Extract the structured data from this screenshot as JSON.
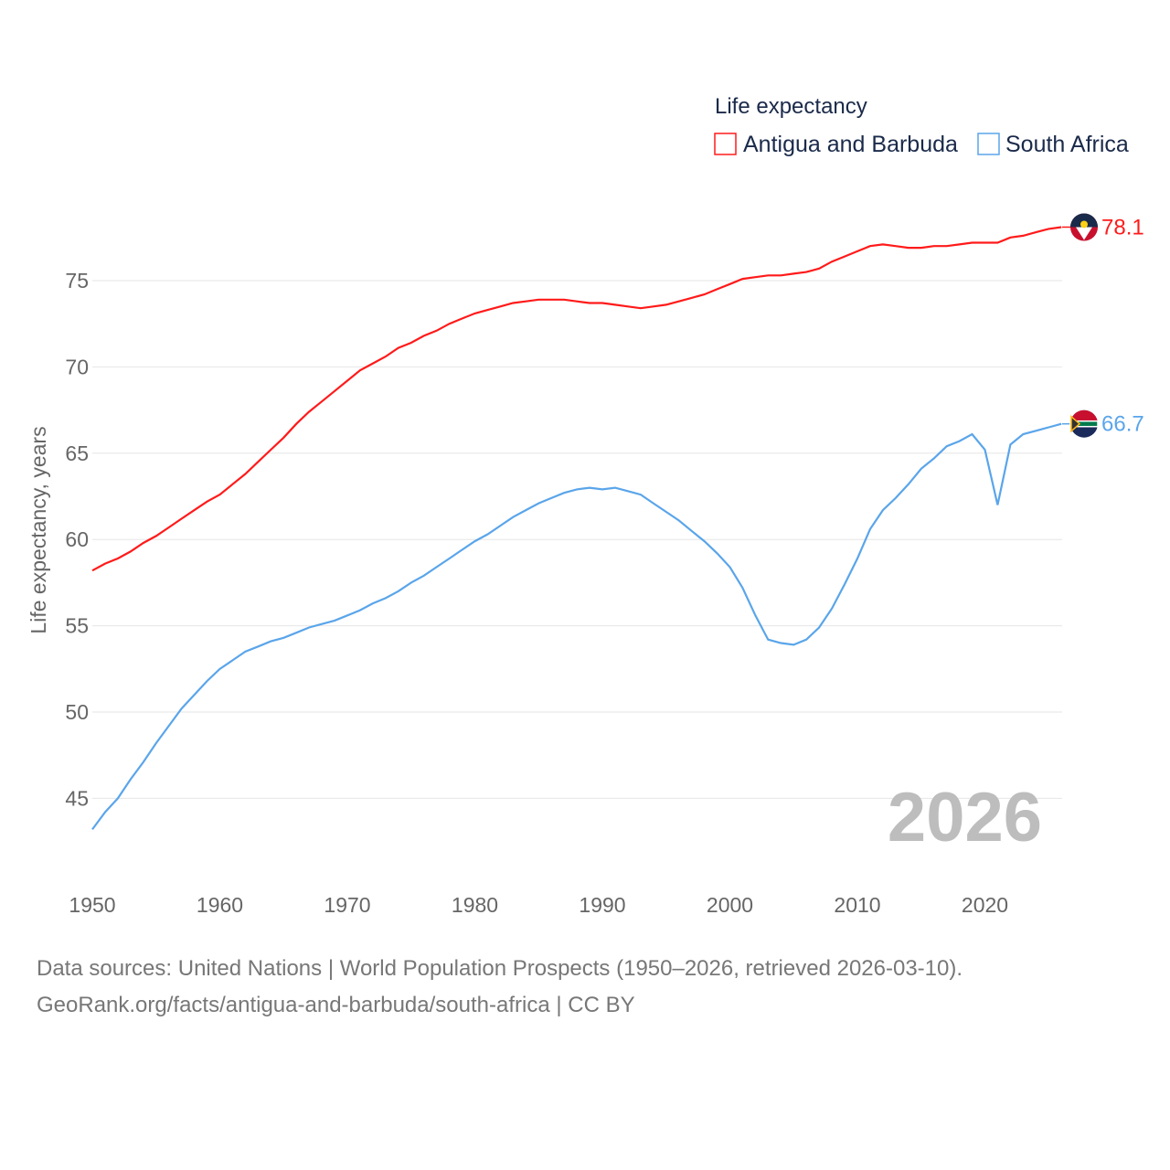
{
  "chart_data": {
    "type": "line",
    "legend_title": "Life expectancy",
    "ylabel": "Life expectancy, years",
    "xlabel": "",
    "ylim": [
      42.5,
      79
    ],
    "xlim": [
      1950,
      2026
    ],
    "grid": true,
    "legend_placement": "top-right",
    "y_ticks": [
      45,
      50,
      55,
      60,
      65,
      70,
      75
    ],
    "x_ticks": [
      1950,
      1960,
      1970,
      1980,
      1990,
      2000,
      2010,
      2020
    ],
    "year_label": "2026",
    "x_start": 1950,
    "series": [
      {
        "name": "Antigua and Barbuda",
        "color": "#ff1a1a",
        "end_label": "78.1",
        "values": [
          58.2,
          58.6,
          58.9,
          59.3,
          59.8,
          60.2,
          60.7,
          61.2,
          61.7,
          62.2,
          62.6,
          63.2,
          63.8,
          64.5,
          65.2,
          65.9,
          66.7,
          67.4,
          68.0,
          68.6,
          69.2,
          69.8,
          70.2,
          70.6,
          71.1,
          71.4,
          71.8,
          72.1,
          72.5,
          72.8,
          73.1,
          73.3,
          73.5,
          73.7,
          73.8,
          73.9,
          73.9,
          73.9,
          73.8,
          73.7,
          73.7,
          73.6,
          73.5,
          73.4,
          73.5,
          73.6,
          73.8,
          74.0,
          74.2,
          74.5,
          74.8,
          75.1,
          75.2,
          75.3,
          75.3,
          75.4,
          75.5,
          75.7,
          76.1,
          76.4,
          76.7,
          77.0,
          77.1,
          77.0,
          76.9,
          76.9,
          77.0,
          77.0,
          77.1,
          77.2,
          77.2,
          77.2,
          77.5,
          77.6,
          77.8,
          78.0,
          78.1
        ]
      },
      {
        "name": "South Africa",
        "color": "#5aa5ea",
        "end_label": "66.7",
        "values": [
          43.2,
          44.2,
          45.0,
          46.1,
          47.1,
          48.2,
          49.2,
          50.2,
          51.0,
          51.8,
          52.5,
          53.0,
          53.5,
          53.8,
          54.1,
          54.3,
          54.6,
          54.9,
          55.1,
          55.3,
          55.6,
          55.9,
          56.3,
          56.6,
          57.0,
          57.5,
          57.9,
          58.4,
          58.9,
          59.4,
          59.9,
          60.3,
          60.8,
          61.3,
          61.7,
          62.1,
          62.4,
          62.7,
          62.9,
          63.0,
          62.9,
          63.0,
          62.8,
          62.6,
          62.1,
          61.6,
          61.1,
          60.5,
          59.9,
          59.2,
          58.4,
          57.2,
          55.6,
          54.2,
          54.0,
          53.9,
          54.2,
          54.9,
          56.0,
          57.4,
          58.9,
          60.6,
          61.7,
          62.4,
          63.2,
          64.1,
          64.7,
          65.4,
          65.7,
          66.1,
          65.2,
          62.0,
          65.5,
          66.1,
          66.3,
          66.5,
          66.7
        ]
      }
    ]
  },
  "footer": {
    "line1": "Data sources: United Nations | World Population Prospects (1950–2026, retrieved 2026-03-10).",
    "line2": "GeoRank.org/facts/antigua-and-barbuda/south-africa | CC BY"
  }
}
